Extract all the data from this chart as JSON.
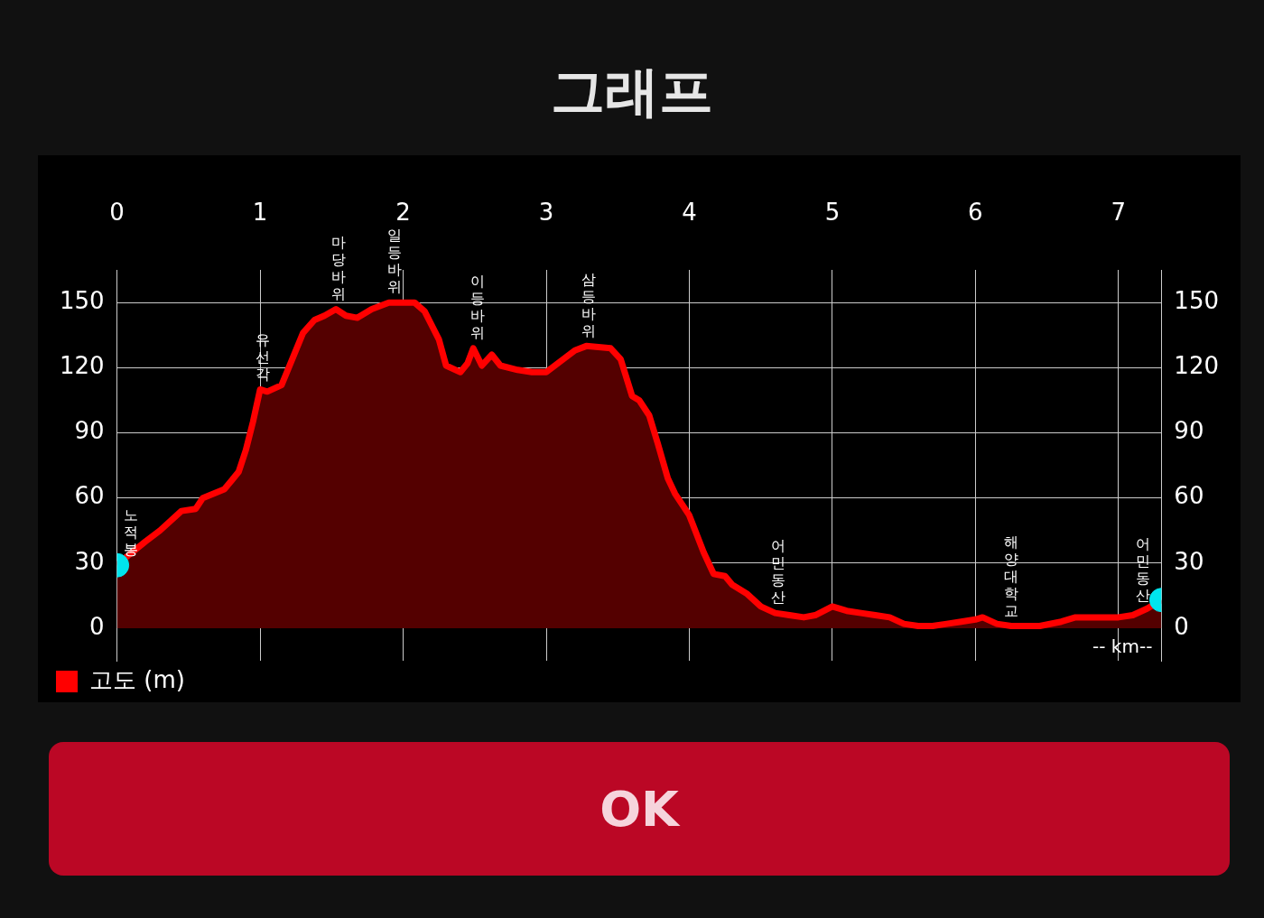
{
  "chart_data": {
    "type": "area",
    "title": "그래프",
    "xlabel": "-- km--",
    "xlim": [
      0,
      7.3
    ],
    "xticks": [
      0,
      1,
      2,
      3,
      4,
      5,
      6,
      7
    ],
    "ylim": [
      -15,
      165
    ],
    "yticks": [
      0,
      30,
      60,
      90,
      120,
      150
    ],
    "y2lim": [
      -15,
      165
    ],
    "y2ticks": [
      0,
      30,
      60,
      90,
      120,
      150
    ],
    "grid": true,
    "legend": "bottom left",
    "series": [
      {
        "name": "고도 (m)",
        "color": "#ff0000",
        "x": [
          0,
          0.05,
          0.2,
          0.3,
          0.45,
          0.55,
          0.6,
          0.75,
          0.8,
          0.85,
          0.9,
          0.95,
          1.0,
          1.05,
          1.15,
          1.2,
          1.3,
          1.38,
          1.45,
          1.53,
          1.6,
          1.68,
          1.78,
          1.9,
          2.08,
          2.15,
          2.25,
          2.3,
          2.4,
          2.45,
          2.49,
          2.55,
          2.62,
          2.68,
          2.8,
          2.9,
          3.0,
          3.1,
          3.2,
          3.28,
          3.45,
          3.52,
          3.6,
          3.65,
          3.72,
          3.78,
          3.85,
          3.9,
          4.0,
          4.1,
          4.17,
          4.25,
          4.3,
          4.4,
          4.5,
          4.6,
          4.7,
          4.8,
          4.88,
          5.0,
          5.1,
          5.2,
          5.3,
          5.4,
          5.5,
          5.6,
          5.7,
          5.8,
          5.9,
          6.0,
          6.05,
          6.15,
          6.25,
          6.35,
          6.45,
          6.6,
          6.7,
          6.8,
          7.0,
          7.1,
          7.2,
          7.3
        ],
        "values": [
          29,
          32,
          40,
          45,
          54,
          55,
          60,
          64,
          68,
          72,
          82,
          95,
          110,
          109,
          112,
          120,
          136,
          142,
          144,
          147,
          144,
          143,
          147,
          150,
          150,
          146,
          133,
          121,
          118,
          122,
          129,
          121,
          126,
          121,
          119,
          118,
          118,
          123,
          128,
          130,
          129,
          124,
          107,
          105,
          98,
          85,
          69,
          62,
          52,
          35,
          25,
          24,
          20,
          16,
          10,
          7,
          6,
          5,
          6,
          10,
          8,
          7,
          6,
          5,
          2,
          1,
          1,
          2,
          3,
          4,
          5,
          2,
          1,
          1,
          1,
          3,
          5,
          5,
          5,
          6,
          9,
          13
        ]
      },
      {
        "type": "scatter",
        "color": "#00e5ee",
        "marker": "circle",
        "x": [
          0,
          7.3
        ],
        "values": [
          29,
          13
        ]
      }
    ],
    "annotations": [
      {
        "text": "노적봉",
        "x": 0.08,
        "y": 29
      },
      {
        "text": "유선각",
        "x": 1.0,
        "y": 110
      },
      {
        "text": "마당바위",
        "x": 1.53,
        "y": 147
      },
      {
        "text": "일등바위",
        "x": 1.92,
        "y": 150
      },
      {
        "text": "이등바위",
        "x": 2.5,
        "y": 129
      },
      {
        "text": "삼등바위",
        "x": 3.28,
        "y": 130
      },
      {
        "text": "어민동산",
        "x": 4.6,
        "y": 7
      },
      {
        "text": "해양대학교",
        "x": 6.23,
        "y": 1
      },
      {
        "text": "어민동산",
        "x": 7.15,
        "y": 8
      },
      "OK"
    ]
  }
}
